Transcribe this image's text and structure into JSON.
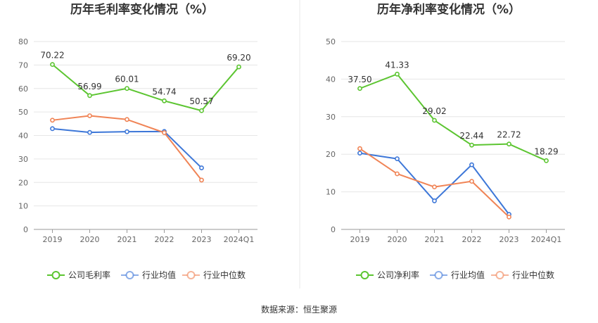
{
  "source_note": "数据来源：恒生聚源",
  "chart_data": [
    {
      "type": "line",
      "title": "历年毛利率变化情况（%）",
      "categories": [
        "2019",
        "2020",
        "2021",
        "2022",
        "2023",
        "2024Q1"
      ],
      "ylim": [
        0,
        80
      ],
      "yticks": [
        0,
        10,
        20,
        30,
        40,
        50,
        60,
        70,
        80
      ],
      "grid": true,
      "legend_position": "bottom",
      "series": [
        {
          "name": "公司毛利率",
          "color": "#5cc531",
          "values": [
            70.22,
            56.99,
            60.01,
            54.74,
            50.57,
            69.2
          ],
          "labels": [
            "70.22",
            "56.99",
            "60.01",
            "54.74",
            "50.57",
            "69.20"
          ]
        },
        {
          "name": "行业均值",
          "color": "#3d77d8",
          "values": [
            42.9,
            41.3,
            41.6,
            41.7,
            26.2,
            null
          ]
        },
        {
          "name": "行业中位数",
          "color": "#f08456",
          "values": [
            46.5,
            48.4,
            46.8,
            41.2,
            21.0,
            null
          ]
        }
      ]
    },
    {
      "type": "line",
      "title": "历年净利率变化情况（%）",
      "categories": [
        "2019",
        "2020",
        "2021",
        "2022",
        "2023",
        "2024Q1"
      ],
      "ylim": [
        0,
        50
      ],
      "yticks": [
        0,
        10,
        20,
        30,
        40,
        50
      ],
      "grid": true,
      "legend_position": "bottom",
      "series": [
        {
          "name": "公司净利率",
          "color": "#5cc531",
          "values": [
            37.5,
            41.33,
            29.02,
            22.44,
            22.72,
            18.29
          ],
          "labels": [
            "37.50",
            "41.33",
            "29.02",
            "22.44",
            "22.72",
            "18.29"
          ]
        },
        {
          "name": "行业均值",
          "color": "#3d77d8",
          "values": [
            20.3,
            18.8,
            7.6,
            17.2,
            4.0,
            null
          ]
        },
        {
          "name": "行业中位数",
          "color": "#f08456",
          "values": [
            21.5,
            14.8,
            11.3,
            12.8,
            3.3,
            null
          ]
        }
      ]
    }
  ]
}
